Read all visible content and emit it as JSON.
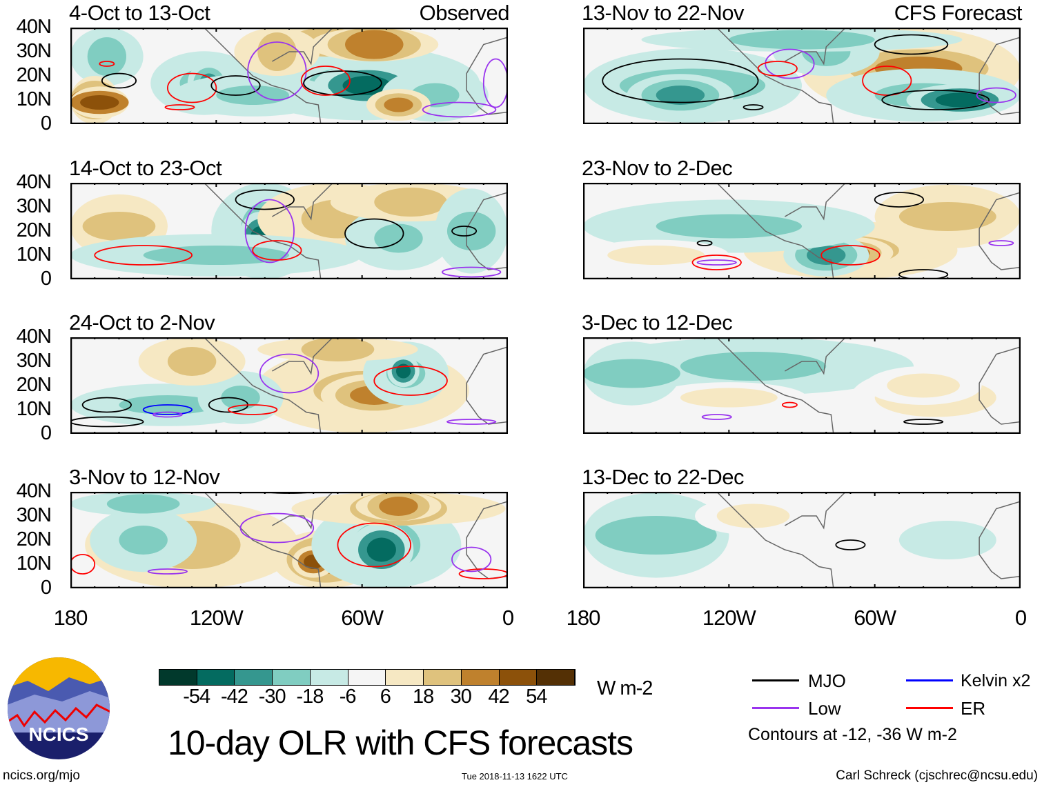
{
  "observed_label": "Observed",
  "forecast_label": "CFS Forecast",
  "panels": [
    {
      "title": "4-Oct to 13-Oct",
      "column": "observed"
    },
    {
      "title": "14-Oct to 23-Oct",
      "column": "observed"
    },
    {
      "title": "24-Oct to 2-Nov",
      "column": "observed"
    },
    {
      "title": "3-Nov to 12-Nov",
      "column": "observed"
    },
    {
      "title": "13-Nov to 22-Nov",
      "column": "forecast"
    },
    {
      "title": "23-Nov to 2-Dec",
      "column": "forecast"
    },
    {
      "title": "3-Dec to 12-Dec",
      "column": "forecast"
    },
    {
      "title": "13-Dec to 22-Dec",
      "column": "forecast"
    }
  ],
  "y_ticks": [
    "40N",
    "30N",
    "20N",
    "10N",
    "0"
  ],
  "x_ticks": [
    "180",
    "120W",
    "60W",
    "0"
  ],
  "colorbar": {
    "colors": [
      "#01392c",
      "#046b60",
      "#35978f",
      "#80cdc1",
      "#c7eae5",
      "#f5f5f5",
      "#f6e8c3",
      "#dfc27d",
      "#bf812d",
      "#8c510a",
      "#543005"
    ],
    "labels": [
      "-54",
      "-42",
      "-30",
      "-18",
      "-6",
      "6",
      "18",
      "30",
      "42",
      "54"
    ],
    "units": "W m-2"
  },
  "title": "10-day OLR with CFS forecasts",
  "legend": {
    "items": [
      {
        "label": "MJO",
        "color": "#000000"
      },
      {
        "label": "Kelvin x2",
        "color": "#0000ff"
      },
      {
        "label": "Low",
        "color": "#9933ee"
      },
      {
        "label": "ER",
        "color": "#ff0000"
      }
    ],
    "note": "Contours at -12, -36 W m-2"
  },
  "logo_text": "NCICS",
  "website": "ncics.org/mjo",
  "timestamp": "Tue 2018-11-13 1622 UTC",
  "credit": "Carl Schreck (cjschrec@ncsu.edu)"
}
